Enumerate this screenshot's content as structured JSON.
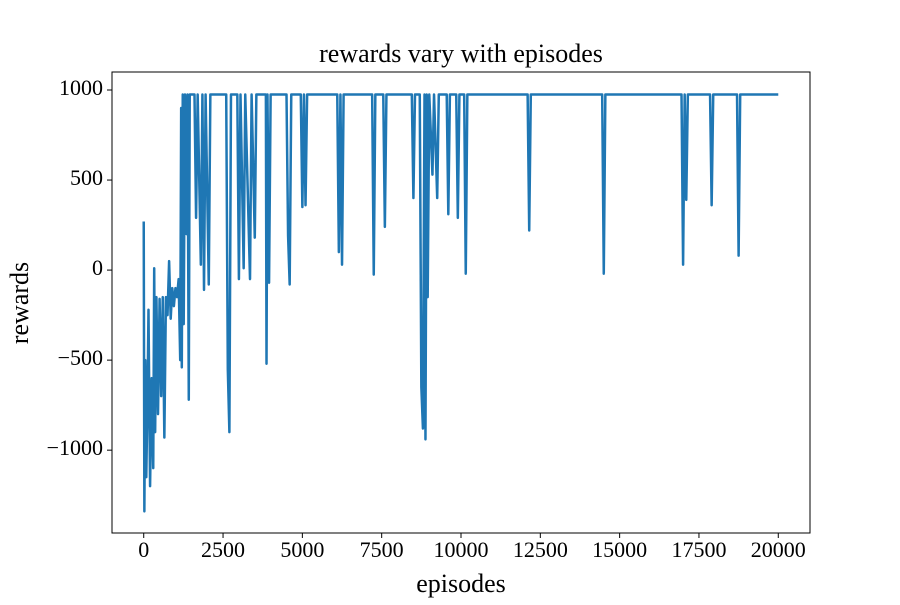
{
  "chart_data": {
    "type": "line",
    "title": "rewards vary with episodes",
    "x_label": "episodes",
    "y_label": "rewards",
    "x": [
      0,
      20,
      50,
      80,
      120,
      150,
      200,
      250,
      300,
      330,
      360,
      400,
      450,
      500,
      550,
      600,
      650,
      700,
      750,
      800,
      850,
      900,
      950,
      1000,
      1050,
      1100,
      1150,
      1180,
      1200,
      1230,
      1260,
      1300,
      1350,
      1380,
      1420,
      1450,
      1600,
      1650,
      1700,
      1800,
      1850,
      1900,
      1950,
      2050,
      2100,
      2600,
      2650,
      2700,
      2750,
      2950,
      3000,
      3050,
      3150,
      3200,
      3350,
      3400,
      3500,
      3550,
      3850,
      3870,
      3900,
      3950,
      4000,
      4500,
      4550,
      4600,
      4650,
      4950,
      5000,
      5050,
      5100,
      5150,
      6100,
      6150,
      6200,
      6250,
      6300,
      7200,
      7250,
      7300,
      7550,
      7600,
      7650,
      8450,
      8500,
      8550,
      8700,
      8750,
      8800,
      8850,
      8880,
      8920,
      8950,
      9000,
      9100,
      9150,
      9250,
      9300,
      9550,
      9600,
      9650,
      9850,
      9900,
      9950,
      10100,
      10150,
      10200,
      12100,
      12150,
      12200,
      14450,
      14500,
      14550,
      16950,
      17000,
      17050,
      17100,
      17150,
      17850,
      17900,
      17950,
      18700,
      18750,
      18800,
      20000
    ],
    "series": [
      {
        "name": "rewards",
        "color": "#1f77b4",
        "values": [
          270,
          -1340,
          -500,
          -1150,
          -700,
          -220,
          -1200,
          -600,
          -1100,
          10,
          -900,
          -150,
          -800,
          -160,
          -700,
          -150,
          -930,
          -150,
          -250,
          50,
          -270,
          -100,
          -200,
          -100,
          -150,
          -50,
          -500,
          900,
          -540,
          975,
          -300,
          975,
          200,
          975,
          -720,
          975,
          975,
          290,
          975,
          30,
          975,
          -110,
          975,
          -80,
          975,
          975,
          -550,
          -900,
          975,
          975,
          -50,
          975,
          10,
          975,
          -50,
          975,
          180,
          975,
          975,
          -520,
          975,
          -70,
          975,
          975,
          190,
          -80,
          975,
          975,
          350,
          975,
          360,
          975,
          975,
          100,
          975,
          30,
          975,
          975,
          -25,
          975,
          975,
          240,
          975,
          975,
          400,
          975,
          975,
          -650,
          -880,
          975,
          -940,
          975,
          -150,
          975,
          530,
          975,
          400,
          975,
          975,
          310,
          975,
          975,
          290,
          975,
          975,
          -20,
          975,
          975,
          220,
          975,
          975,
          -20,
          975,
          975,
          30,
          975,
          390,
          975,
          975,
          360,
          975,
          975,
          80,
          975,
          975
        ]
      }
    ],
    "xlim": [
      -1000,
      21000
    ],
    "ylim": [
      -1460,
      1100
    ],
    "xticks": [
      0,
      2500,
      5000,
      7500,
      10000,
      12500,
      15000,
      17500,
      20000
    ],
    "yticks": [
      {
        "value": -1000,
        "label": "−1000"
      },
      {
        "value": -500,
        "label": "−500"
      },
      0,
      500,
      1000
    ]
  }
}
